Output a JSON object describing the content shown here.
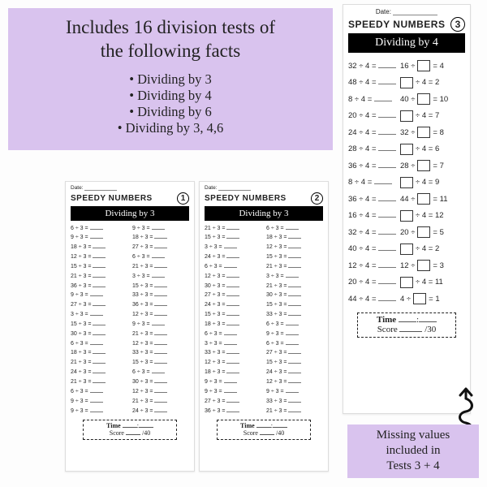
{
  "intro": {
    "title_line1": "Includes 16 division tests of",
    "title_line2": "the following facts",
    "bullets": [
      "Dividing by 3",
      "Dividing by 4",
      "Dividing by 6",
      "Dividing by 3, 4,6"
    ]
  },
  "ws1": {
    "date_label": "Date:",
    "title": "SPEEDY NUMBERS",
    "number": "1",
    "bar": "Dividing by 3",
    "left": [
      "6 ÷ 3 =",
      "9 ÷ 3 =",
      "18 ÷ 3 =",
      "12 ÷ 3 =",
      "15 ÷ 3 =",
      "21 ÷ 3 =",
      "36 ÷ 3 =",
      "9 ÷ 3 =",
      "27 ÷ 3 =",
      "3 ÷ 3 =",
      "15 ÷ 3 =",
      "30 ÷ 3 =",
      "6 ÷ 3 =",
      "18 ÷ 3 =",
      "21 ÷ 3 =",
      "24 ÷ 3 =",
      "21 ÷ 3 =",
      "6 ÷ 3 =",
      "9 ÷ 3 =",
      "9 ÷ 3 ="
    ],
    "right": [
      "9 ÷ 3 =",
      "18 ÷ 3 =",
      "27 ÷ 3 =",
      "6 ÷ 3 =",
      "21 ÷ 3 =",
      "3 ÷ 3 =",
      "15 ÷ 3 =",
      "33 ÷ 3 =",
      "36 ÷ 3 =",
      "12 ÷ 3 =",
      "9 ÷ 3 =",
      "21 ÷ 3 =",
      "12 ÷ 3 =",
      "33 ÷ 3 =",
      "15 ÷ 3 =",
      "6 ÷ 3 =",
      "30 ÷ 3 =",
      "12 ÷ 3 =",
      "21 ÷ 3 =",
      "24 ÷ 3 ="
    ],
    "time_label": "Time",
    "score_label": "Score",
    "score_total": "/40"
  },
  "ws2": {
    "date_label": "Date:",
    "title": "SPEEDY NUMBERS",
    "number": "2",
    "bar": "Dividing by 3",
    "left": [
      "21 ÷ 3 =",
      "15 ÷ 3 =",
      "3 ÷ 3 =",
      "24 ÷ 3 =",
      "6 ÷ 3 =",
      "12 ÷ 3 =",
      "30 ÷ 3 =",
      "27 ÷ 3 =",
      "24 ÷ 3 =",
      "15 ÷ 3 =",
      "18 ÷ 3 =",
      "6 ÷ 3 =",
      "3 ÷ 3 =",
      "33 ÷ 3 =",
      "12 ÷ 3 =",
      "18 ÷ 3 =",
      "9 ÷ 3 =",
      "9 ÷ 3 =",
      "27 ÷ 3 =",
      "36 ÷ 3 ="
    ],
    "right": [
      "6 ÷ 3 =",
      "18 ÷ 3 =",
      "12 ÷ 3 =",
      "15 ÷ 3 =",
      "21 ÷ 3 =",
      "3 ÷ 3 =",
      "21 ÷ 3 =",
      "30 ÷ 3 =",
      "15 ÷ 3 =",
      "33 ÷ 3 =",
      "6 ÷ 3 =",
      "9 ÷ 3 =",
      "6 ÷ 3 =",
      "27 ÷ 3 =",
      "15 ÷ 3 =",
      "24 ÷ 3 =",
      "12 ÷ 3 =",
      "9 ÷ 3 =",
      "33 ÷ 3 =",
      "21 ÷ 3 ="
    ],
    "time_label": "Time",
    "score_label": "Score",
    "score_total": "/40"
  },
  "ws3": {
    "date_label": "Date:",
    "title": "SPEEDY NUMBERS",
    "number": "3",
    "bar": "Dividing by 4",
    "rows": [
      {
        "l": "32 ÷ 4 =",
        "rpre": "16 ÷",
        "rpost": " = 4"
      },
      {
        "l": "48 ÷ 4 =",
        "rpre": "",
        "rpost": " ÷ 4 = 2"
      },
      {
        "l": "8 ÷ 4 =",
        "rpre": "40 ÷",
        "rpost": " = 10"
      },
      {
        "l": "20 ÷ 4 =",
        "rpre": "",
        "rpost": " ÷ 4  = 7"
      },
      {
        "l": "24 ÷ 4 =",
        "rpre": "32 ÷",
        "rpost": " = 8"
      },
      {
        "l": "28 ÷ 4 =",
        "rpre": "",
        "rpost": " ÷ 4 = 6"
      },
      {
        "l": "36 ÷ 4 =",
        "rpre": "28 ÷",
        "rpost": " = 7"
      },
      {
        "l": "8 ÷ 4 =",
        "rpre": "",
        "rpost": " ÷ 4 = 9"
      },
      {
        "l": "36 ÷ 4 =",
        "rpre": "44 ÷",
        "rpost": " = 11"
      },
      {
        "l": "16 ÷ 4 =",
        "rpre": "",
        "rpost": " ÷ 4 = 12"
      },
      {
        "l": "32 ÷ 4 =",
        "rpre": "20 ÷",
        "rpost": " = 5"
      },
      {
        "l": "40 ÷ 4 =",
        "rpre": "",
        "rpost": " ÷ 4 = 2"
      },
      {
        "l": "12 ÷ 4 =",
        "rpre": "12 ÷",
        "rpost": " = 3"
      },
      {
        "l": "20 ÷ 4 =",
        "rpre": "",
        "rpost": " ÷ 4 = 11"
      },
      {
        "l": "44 ÷ 4 =",
        "rpre": "4 ÷",
        "rpost": " = 1"
      }
    ],
    "time_label": "Time",
    "score_label": "Score",
    "score_total": "/30"
  },
  "callout": {
    "line1": "Missing values",
    "line2": "included in",
    "line3": "Tests 3 + 4"
  }
}
